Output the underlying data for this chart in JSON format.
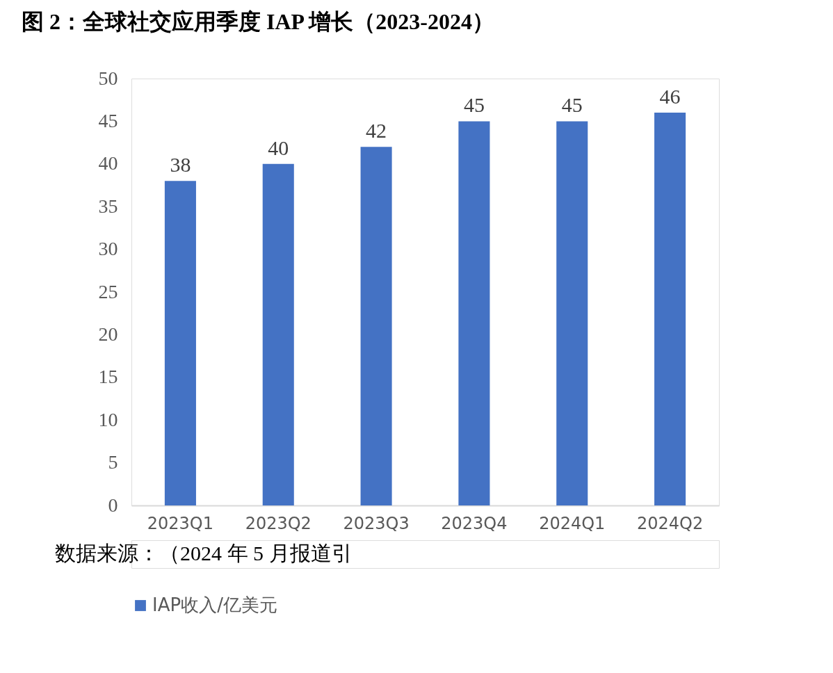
{
  "chart_data": {
    "type": "bar",
    "title": "图 2：全球社交应用季度 IAP 增长（2023-2024）",
    "categories": [
      "2023Q1",
      "2023Q2",
      "2023Q3",
      "2023Q4",
      "2024Q1",
      "2024Q2"
    ],
    "series": [
      {
        "name": "IAP收入/亿美元",
        "color": "#4472c4",
        "values": [
          38,
          40,
          42,
          45,
          45,
          46
        ]
      }
    ],
    "ylim": [
      0,
      50
    ],
    "yticks": [
      0,
      5,
      10,
      15,
      20,
      25,
      30,
      35,
      40,
      45,
      50
    ],
    "data_labels": true,
    "grid": false,
    "legend": "bottom",
    "annotations": [
      "数据来源：（2024 年 5 月报道引"
    ]
  }
}
